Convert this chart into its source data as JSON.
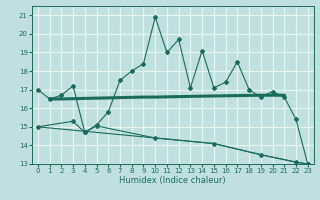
{
  "xlabel": "Humidex (Indice chaleur)",
  "bg_color": "#c0e0e0",
  "grid_color": "#e8f4f4",
  "line_color": "#1a6b5a",
  "xlim": [
    -0.5,
    23.5
  ],
  "ylim": [
    13,
    21.5
  ],
  "yticks": [
    13,
    14,
    15,
    16,
    17,
    18,
    19,
    20,
    21
  ],
  "xticks": [
    0,
    1,
    2,
    3,
    4,
    5,
    6,
    7,
    8,
    9,
    10,
    11,
    12,
    13,
    14,
    15,
    16,
    17,
    18,
    19,
    20,
    21,
    22,
    23
  ],
  "line1_x": [
    0,
    1,
    2,
    3,
    4,
    5,
    6,
    7,
    8,
    9,
    10,
    11,
    12,
    13,
    14,
    15,
    16,
    17,
    18,
    19,
    20,
    21,
    22,
    23
  ],
  "line1_y": [
    17.0,
    16.5,
    16.7,
    17.2,
    14.7,
    15.1,
    15.8,
    17.5,
    18.0,
    18.4,
    20.9,
    19.0,
    19.7,
    17.1,
    19.1,
    17.1,
    17.4,
    18.5,
    17.0,
    16.6,
    16.9,
    16.6,
    15.4,
    13.0
  ],
  "line2_x": [
    1,
    2,
    9,
    10,
    14,
    19,
    20,
    21
  ],
  "line2_y": [
    16.5,
    16.5,
    16.6,
    16.6,
    16.65,
    16.7,
    16.7,
    16.7
  ],
  "line3_x": [
    0,
    3,
    4,
    5,
    10,
    15,
    19,
    22,
    23
  ],
  "line3_y": [
    15.0,
    15.3,
    14.7,
    15.05,
    14.4,
    14.1,
    13.5,
    13.1,
    13.0
  ],
  "line3b_x": [
    0,
    5,
    10,
    15,
    19,
    22,
    23
  ],
  "line3b_y": [
    15.0,
    14.7,
    14.4,
    14.1,
    13.5,
    13.1,
    13.0
  ]
}
